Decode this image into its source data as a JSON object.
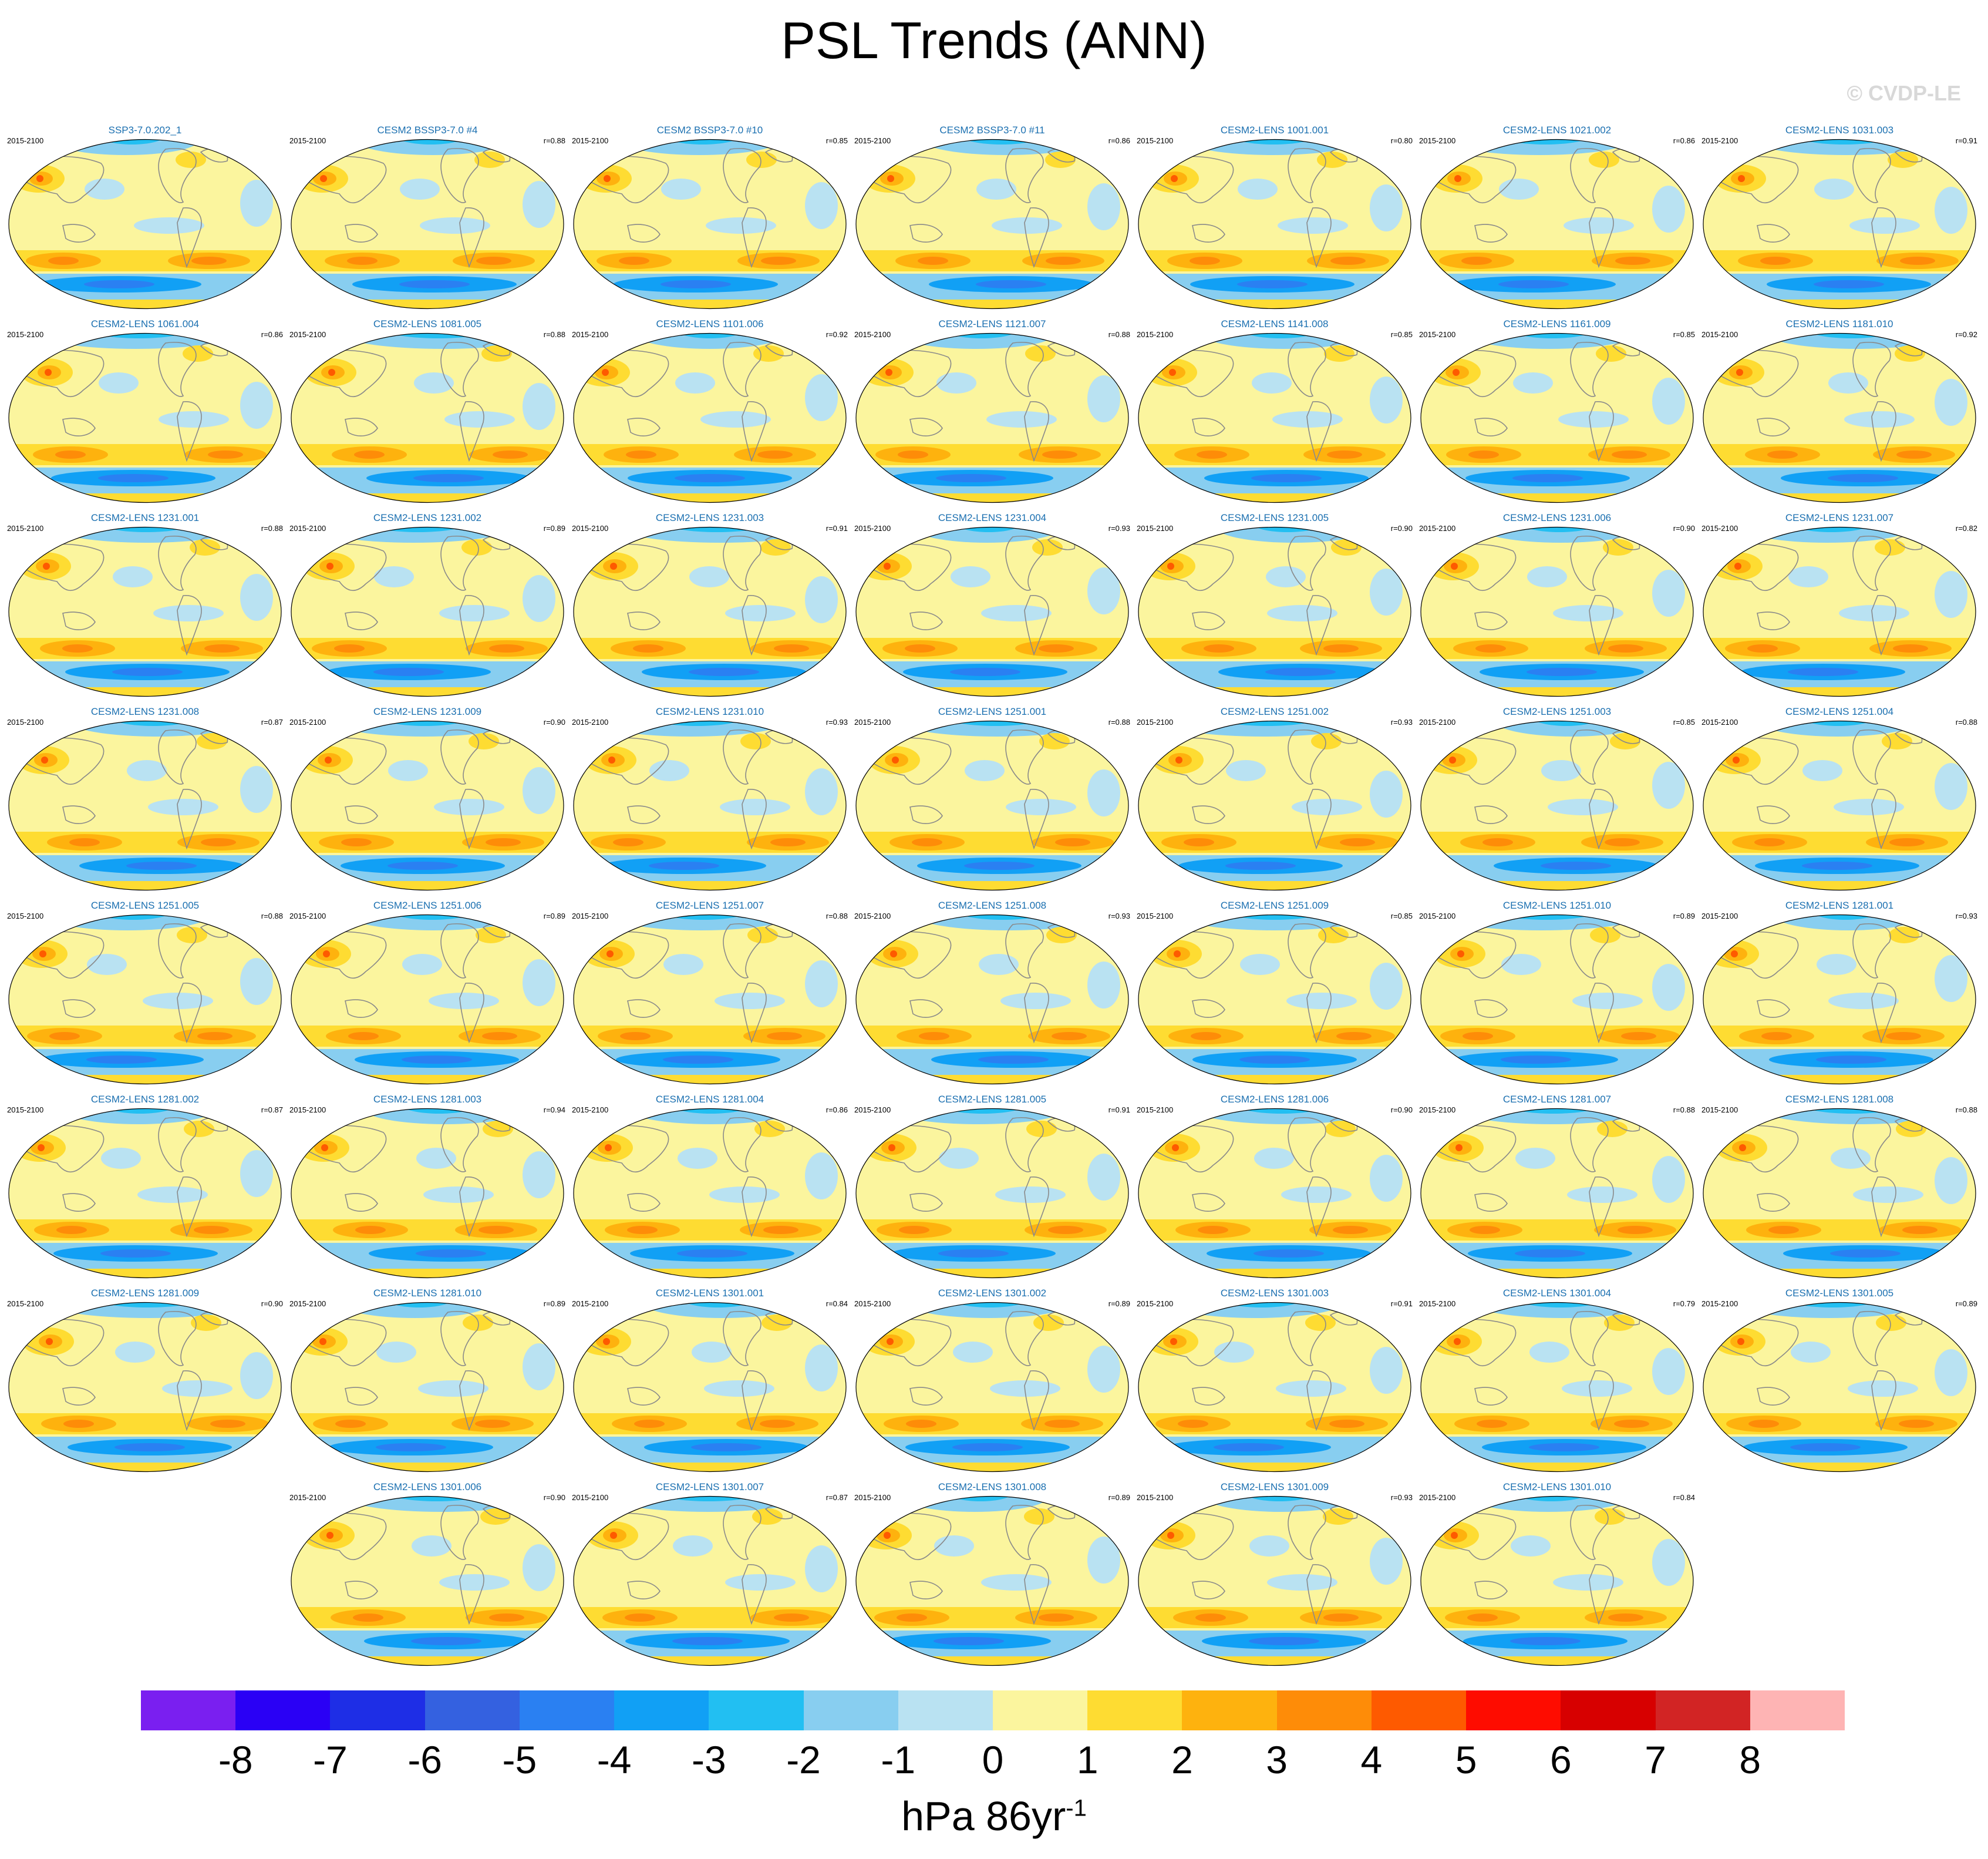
{
  "title": "PSL Trends (ANN)",
  "copyright": "© CVDP-LE",
  "period": "2015-2100",
  "panels": [
    {
      "title": "SSP3-7.0.202_1",
      "r": ""
    },
    {
      "title": "CESM2 BSSP3-7.0 #4",
      "r": "r=0.88"
    },
    {
      "title": "CESM2 BSSP3-7.0 #10",
      "r": "r=0.85"
    },
    {
      "title": "CESM2 BSSP3-7.0 #11",
      "r": "r=0.86"
    },
    {
      "title": "CESM2-LENS 1001.001",
      "r": "r=0.80"
    },
    {
      "title": "CESM2-LENS 1021.002",
      "r": "r=0.86"
    },
    {
      "title": "CESM2-LENS 1031.003",
      "r": "r=0.91"
    },
    {
      "title": "CESM2-LENS 1061.004",
      "r": "r=0.86"
    },
    {
      "title": "CESM2-LENS 1081.005",
      "r": "r=0.88"
    },
    {
      "title": "CESM2-LENS 1101.006",
      "r": "r=0.92"
    },
    {
      "title": "CESM2-LENS 1121.007",
      "r": "r=0.88"
    },
    {
      "title": "CESM2-LENS 1141.008",
      "r": "r=0.85"
    },
    {
      "title": "CESM2-LENS 1161.009",
      "r": "r=0.85"
    },
    {
      "title": "CESM2-LENS 1181.010",
      "r": "r=0.92"
    },
    {
      "title": "CESM2-LENS 1231.001",
      "r": "r=0.88"
    },
    {
      "title": "CESM2-LENS 1231.002",
      "r": "r=0.89"
    },
    {
      "title": "CESM2-LENS 1231.003",
      "r": "r=0.91"
    },
    {
      "title": "CESM2-LENS 1231.004",
      "r": "r=0.93"
    },
    {
      "title": "CESM2-LENS 1231.005",
      "r": "r=0.90"
    },
    {
      "title": "CESM2-LENS 1231.006",
      "r": "r=0.90"
    },
    {
      "title": "CESM2-LENS 1231.007",
      "r": "r=0.82"
    },
    {
      "title": "CESM2-LENS 1231.008",
      "r": "r=0.87"
    },
    {
      "title": "CESM2-LENS 1231.009",
      "r": "r=0.90"
    },
    {
      "title": "CESM2-LENS 1231.010",
      "r": "r=0.93"
    },
    {
      "title": "CESM2-LENS 1251.001",
      "r": "r=0.88"
    },
    {
      "title": "CESM2-LENS 1251.002",
      "r": "r=0.93"
    },
    {
      "title": "CESM2-LENS 1251.003",
      "r": "r=0.85"
    },
    {
      "title": "CESM2-LENS 1251.004",
      "r": "r=0.88"
    },
    {
      "title": "CESM2-LENS 1251.005",
      "r": "r=0.88"
    },
    {
      "title": "CESM2-LENS 1251.006",
      "r": "r=0.89"
    },
    {
      "title": "CESM2-LENS 1251.007",
      "r": "r=0.88"
    },
    {
      "title": "CESM2-LENS 1251.008",
      "r": "r=0.93"
    },
    {
      "title": "CESM2-LENS 1251.009",
      "r": "r=0.85"
    },
    {
      "title": "CESM2-LENS 1251.010",
      "r": "r=0.89"
    },
    {
      "title": "CESM2-LENS 1281.001",
      "r": "r=0.93"
    },
    {
      "title": "CESM2-LENS 1281.002",
      "r": "r=0.87"
    },
    {
      "title": "CESM2-LENS 1281.003",
      "r": "r=0.94"
    },
    {
      "title": "CESM2-LENS 1281.004",
      "r": "r=0.86"
    },
    {
      "title": "CESM2-LENS 1281.005",
      "r": "r=0.91"
    },
    {
      "title": "CESM2-LENS 1281.006",
      "r": "r=0.90"
    },
    {
      "title": "CESM2-LENS 1281.007",
      "r": "r=0.88"
    },
    {
      "title": "CESM2-LENS 1281.008",
      "r": "r=0.88"
    },
    {
      "title": "CESM2-LENS 1281.009",
      "r": "r=0.90"
    },
    {
      "title": "CESM2-LENS 1281.010",
      "r": "r=0.89"
    },
    {
      "title": "CESM2-LENS 1301.001",
      "r": "r=0.84"
    },
    {
      "title": "CESM2-LENS 1301.002",
      "r": "r=0.89"
    },
    {
      "title": "CESM2-LENS 1301.003",
      "r": "r=0.91"
    },
    {
      "title": "CESM2-LENS 1301.004",
      "r": "r=0.79"
    },
    {
      "title": "CESM2-LENS 1301.005",
      "r": "r=0.89"
    },
    {
      "title": "CESM2-LENS 1301.006",
      "r": "r=0.90"
    },
    {
      "title": "CESM2-LENS 1301.007",
      "r": "r=0.87"
    },
    {
      "title": "CESM2-LENS 1301.008",
      "r": "r=0.89"
    },
    {
      "title": "CESM2-LENS 1301.009",
      "r": "r=0.93"
    },
    {
      "title": "CESM2-LENS 1301.010",
      "r": "r=0.84"
    }
  ],
  "colorbar": {
    "colors": [
      "#7a1ff0",
      "#2a00f5",
      "#1e2ee6",
      "#3461e0",
      "#2a80f2",
      "#11a0f5",
      "#22bff2",
      "#88cef0",
      "#b9e2f2",
      "#fbf59e",
      "#fedc32",
      "#feb20e",
      "#fe8c08",
      "#fe5a00",
      "#fe0c00",
      "#d70000",
      "#d22424",
      "#feb4b4"
    ],
    "ticks": [
      "-8",
      "-7",
      "-6",
      "-5",
      "-4",
      "-3",
      "-2",
      "-1",
      "0",
      "1",
      "2",
      "3",
      "4",
      "5",
      "6",
      "7",
      "8"
    ],
    "units": "hPa 86yr",
    "units_exponent": "-1"
  }
}
